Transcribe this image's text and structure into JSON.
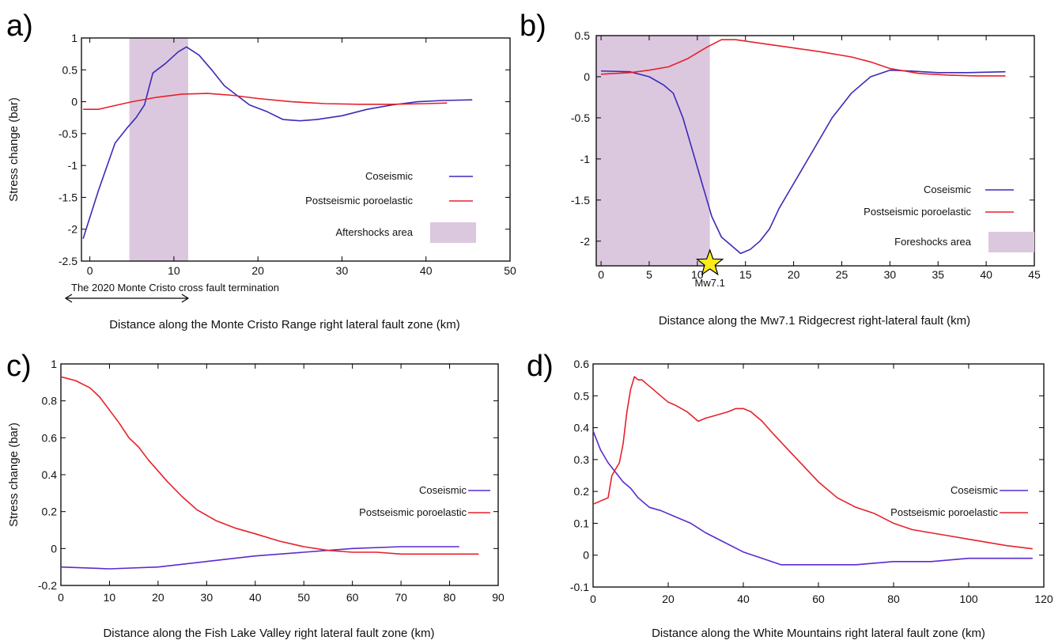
{
  "colors": {
    "coseismic": "#3a2bb8",
    "postseismic": "#e8202a",
    "shade": "#dcc8de",
    "star": "#ffeb1a"
  },
  "chart_data": [
    {
      "type": "line",
      "panel_label": "a)",
      "xlabel": "Distance along the Monte Cristo Range right lateral fault zone (km)",
      "ylabel": "Stress change (bar)",
      "xlim": [
        -1,
        50
      ],
      "ylim": [
        -2.5,
        1
      ],
      "xticks": [
        "0",
        "10",
        "20",
        "30",
        "40",
        "50"
      ],
      "xtick_values": [
        0,
        10,
        20,
        30,
        40,
        50
      ],
      "yticks": [
        "1",
        "0.5",
        "0",
        "-0.5",
        "-1",
        "-1.5",
        "-2",
        "-2.5"
      ],
      "ytick_values": [
        1,
        0.5,
        0,
        -0.5,
        -1,
        -1.5,
        -2,
        -2.5
      ],
      "legend": [
        {
          "label": "Coseismic",
          "kind": "line",
          "color": "#3a2bb8"
        },
        {
          "label": "Postseismic poroelastic",
          "kind": "line",
          "color": "#e8202a"
        },
        {
          "label": "Aftershocks area",
          "kind": "box",
          "color": "#dcc8de"
        }
      ],
      "shaded_region": [
        4.7,
        11.7
      ],
      "annotation": {
        "text": "The 2020 Monte Cristo cross fault termination",
        "arrow_from": -1,
        "arrow_to": 11.7
      },
      "series": [
        {
          "name": "Coseismic",
          "color": "#3a2bb8",
          "x": [
            -0.8,
            1,
            3,
            4.5,
            5.5,
            6.5,
            7.5,
            9,
            10.5,
            11.5,
            13,
            14.5,
            16,
            17.5,
            19,
            21,
            23,
            25,
            27,
            30,
            33,
            36,
            39,
            42,
            45.5
          ],
          "y": [
            -2.15,
            -1.4,
            -0.65,
            -0.4,
            -0.25,
            -0.05,
            0.45,
            0.6,
            0.78,
            0.86,
            0.73,
            0.5,
            0.25,
            0.1,
            -0.05,
            -0.15,
            -0.28,
            -0.3,
            -0.28,
            -0.22,
            -0.12,
            -0.05,
            0.0,
            0.02,
            0.03
          ]
        },
        {
          "name": "Postseismic poroelastic",
          "color": "#e8202a",
          "x": [
            -0.8,
            1,
            3,
            5,
            8,
            11,
            14,
            17,
            20,
            24,
            28,
            32,
            36,
            40,
            42.5
          ],
          "y": [
            -0.12,
            -0.12,
            -0.06,
            0.0,
            0.07,
            0.12,
            0.13,
            0.1,
            0.05,
            0.0,
            -0.03,
            -0.04,
            -0.04,
            -0.03,
            -0.02
          ]
        }
      ]
    },
    {
      "type": "line",
      "panel_label": "b)",
      "xlabel": "Distance along the Mw7.1 Ridgecrest right-lateral fault (km)",
      "ylabel": "",
      "xlim": [
        -0.5,
        45
      ],
      "ylim": [
        -2.3,
        0.5
      ],
      "xticks": [
        "0",
        "5",
        "10",
        "15",
        "20",
        "25",
        "30",
        "35",
        "40",
        "45"
      ],
      "xtick_values": [
        0,
        5,
        10,
        15,
        20,
        25,
        30,
        35,
        40,
        45
      ],
      "yticks": [
        "0.5",
        "0",
        "-0.5",
        "-1",
        "-1.5",
        "-2"
      ],
      "ytick_values": [
        0.5,
        0,
        -0.5,
        -1,
        -1.5,
        -2
      ],
      "legend": [
        {
          "label": "Coseismic",
          "kind": "line",
          "color": "#3a2bb8"
        },
        {
          "label": "Postseismic poroelastic",
          "kind": "line",
          "color": "#e8202a"
        },
        {
          "label": "Foreshocks area",
          "kind": "box",
          "color": "#dcc8de"
        }
      ],
      "shaded_region": [
        -0.5,
        11.3
      ],
      "star": {
        "x": 11.3,
        "y": -2.3,
        "label": "Mw7.1"
      },
      "series": [
        {
          "name": "Coseismic",
          "color": "#3a2bb8",
          "x": [
            0,
            3,
            5,
            6.5,
            7.5,
            8.5,
            9.5,
            10.5,
            11.5,
            12.5,
            13.5,
            14.5,
            15.5,
            16.5,
            17.5,
            18.5,
            20,
            22,
            24,
            26,
            28,
            30,
            32,
            35,
            38,
            42
          ],
          "y": [
            0.07,
            0.06,
            0.0,
            -0.1,
            -0.2,
            -0.5,
            -0.9,
            -1.3,
            -1.7,
            -1.95,
            -2.05,
            -2.15,
            -2.1,
            -2.0,
            -1.85,
            -1.6,
            -1.3,
            -0.9,
            -0.5,
            -0.2,
            0.0,
            0.08,
            0.07,
            0.05,
            0.05,
            0.06
          ]
        },
        {
          "name": "Postseismic poroelastic",
          "color": "#e8202a",
          "x": [
            0,
            3,
            5,
            7,
            9,
            11,
            12.5,
            14,
            17,
            20,
            23,
            26,
            28,
            30,
            33,
            36,
            39,
            42
          ],
          "y": [
            0.03,
            0.05,
            0.08,
            0.12,
            0.22,
            0.36,
            0.45,
            0.45,
            0.4,
            0.35,
            0.3,
            0.24,
            0.18,
            0.1,
            0.04,
            0.02,
            0.01,
            0.01
          ]
        }
      ]
    },
    {
      "type": "line",
      "panel_label": "c)",
      "xlabel": "Distance along the Fish Lake Valley right lateral fault zone (km)",
      "ylabel": "Stress change (bar)",
      "xlim": [
        0,
        90
      ],
      "ylim": [
        -0.2,
        1
      ],
      "xticks": [
        "0",
        "10",
        "20",
        "30",
        "40",
        "50",
        "60",
        "70",
        "80",
        "90"
      ],
      "xtick_values": [
        0,
        10,
        20,
        30,
        40,
        50,
        60,
        70,
        80,
        90
      ],
      "yticks": [
        "1",
        "0.8",
        "0.6",
        "0.4",
        "0.2",
        "0",
        "-0.2"
      ],
      "ytick_values": [
        1,
        0.8,
        0.6,
        0.4,
        0.2,
        0,
        -0.2
      ],
      "legend": [
        {
          "label": "Coseismic",
          "kind": "line",
          "color": "#5a2bd0"
        },
        {
          "label": "Postseismic poroelastic",
          "kind": "line",
          "color": "#e8202a"
        }
      ],
      "series": [
        {
          "name": "Coseismic",
          "color": "#5a2bd0",
          "x": [
            0,
            10,
            20,
            30,
            40,
            50,
            60,
            70,
            82
          ],
          "y": [
            -0.1,
            -0.11,
            -0.1,
            -0.07,
            -0.04,
            -0.02,
            0.0,
            0.01,
            0.01
          ]
        },
        {
          "name": "Postseismic poroelastic",
          "color": "#e8202a",
          "x": [
            0,
            3,
            6,
            8,
            10,
            12,
            14,
            16,
            18,
            20,
            22,
            25,
            28,
            32,
            36,
            40,
            45,
            50,
            55,
            60,
            65,
            70,
            75,
            80,
            86
          ],
          "y": [
            0.93,
            0.91,
            0.87,
            0.82,
            0.75,
            0.68,
            0.6,
            0.55,
            0.48,
            0.42,
            0.36,
            0.28,
            0.21,
            0.15,
            0.11,
            0.08,
            0.04,
            0.01,
            -0.01,
            -0.02,
            -0.02,
            -0.03,
            -0.03,
            -0.03,
            -0.03
          ]
        }
      ]
    },
    {
      "type": "line",
      "panel_label": "d)",
      "xlabel": "Distance along the White Mountains right lateral fault zone (km)",
      "ylabel": "",
      "xlim": [
        0,
        120
      ],
      "ylim": [
        -0.1,
        0.6
      ],
      "xticks": [
        "0",
        "20",
        "40",
        "60",
        "80",
        "100",
        "120"
      ],
      "xtick_values": [
        0,
        20,
        40,
        60,
        80,
        100,
        120
      ],
      "yticks": [
        "0.6",
        "0.5",
        "0.4",
        "0.3",
        "0.2",
        "0.1",
        "0",
        "-0.1"
      ],
      "ytick_values": [
        0.6,
        0.5,
        0.4,
        0.3,
        0.2,
        0.1,
        0,
        -0.1
      ],
      "legend": [
        {
          "label": "Coseismic",
          "kind": "line",
          "color": "#5a2bd0"
        },
        {
          "label": "Postseismic poroelastic",
          "kind": "line",
          "color": "#e8202a"
        }
      ],
      "series": [
        {
          "name": "Coseismic",
          "color": "#5a2bd0",
          "x": [
            0,
            2,
            4,
            6,
            8,
            10,
            12,
            15,
            18,
            22,
            26,
            30,
            35,
            40,
            45,
            50,
            55,
            60,
            65,
            70,
            80,
            90,
            100,
            110,
            117
          ],
          "y": [
            0.39,
            0.33,
            0.29,
            0.26,
            0.23,
            0.21,
            0.18,
            0.15,
            0.14,
            0.12,
            0.1,
            0.07,
            0.04,
            0.01,
            -0.01,
            -0.03,
            -0.03,
            -0.03,
            -0.03,
            -0.03,
            -0.02,
            -0.02,
            -0.01,
            -0.01,
            -0.01
          ]
        },
        {
          "name": "Postseismic poroelastic",
          "color": "#e8202a",
          "x": [
            0,
            2,
            4,
            5,
            6,
            7,
            8,
            9,
            10,
            11,
            12,
            13,
            14,
            16,
            18,
            20,
            22,
            25,
            28,
            30,
            33,
            36,
            38,
            40,
            42,
            45,
            48,
            52,
            56,
            60,
            65,
            70,
            75,
            80,
            85,
            90,
            95,
            100,
            105,
            110,
            117
          ],
          "y": [
            0.16,
            0.17,
            0.18,
            0.25,
            0.27,
            0.29,
            0.35,
            0.45,
            0.52,
            0.56,
            0.55,
            0.55,
            0.54,
            0.52,
            0.5,
            0.48,
            0.47,
            0.45,
            0.42,
            0.43,
            0.44,
            0.45,
            0.46,
            0.46,
            0.45,
            0.42,
            0.38,
            0.33,
            0.28,
            0.23,
            0.18,
            0.15,
            0.13,
            0.1,
            0.08,
            0.07,
            0.06,
            0.05,
            0.04,
            0.03,
            0.02
          ]
        }
      ]
    }
  ]
}
